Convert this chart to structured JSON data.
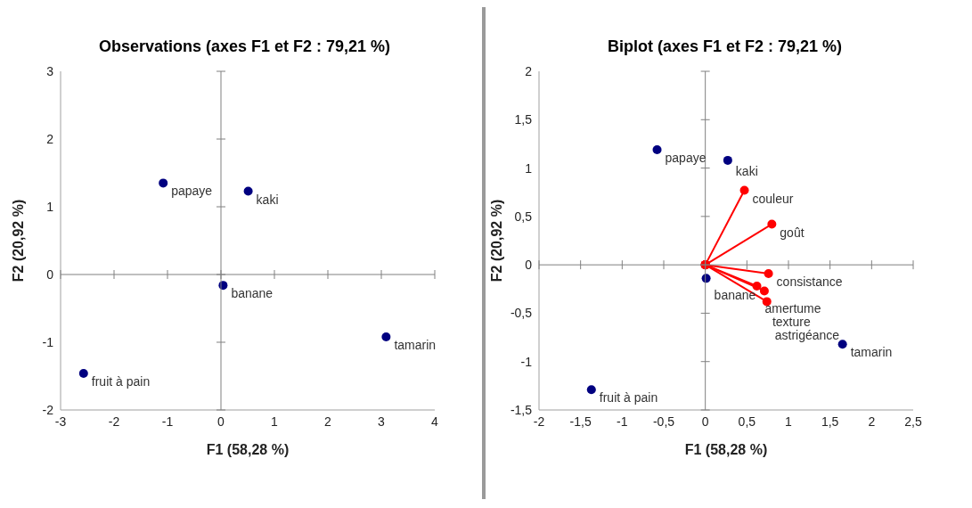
{
  "chart_data": [
    {
      "type": "scatter",
      "title": "Observations (axes F1 et F2 : 79,21 %)",
      "xlabel": "F1 (58,28 %)",
      "ylabel": "F2 (20,92 %)",
      "xlim": [
        -3,
        4
      ],
      "xticks": [
        -3,
        -2,
        -1,
        0,
        1,
        2,
        3,
        4
      ],
      "ylim": [
        -2,
        3
      ],
      "yticks": [
        -2,
        -1,
        0,
        1,
        2,
        3
      ],
      "marker": "circle",
      "series": [
        {
          "color": "#000080",
          "x": [
            -1.08,
            0.51,
            0.04,
            3.09,
            -2.57
          ],
          "values": [
            1.35,
            1.23,
            -0.16,
            -0.92,
            -1.46
          ]
        }
      ],
      "annotations": [
        {
          "text": "papaye",
          "x": -1.08,
          "y": 1.35
        },
        {
          "text": "kaki",
          "x": 0.51,
          "y": 1.23
        },
        {
          "text": "banane",
          "x": 0.04,
          "y": -0.16
        },
        {
          "text": "tamarin",
          "x": 3.09,
          "y": -0.92
        },
        {
          "text": "fruit à pain",
          "x": -2.57,
          "y": -1.46
        }
      ]
    },
    {
      "type": "scatter",
      "title": "Biplot (axes F1 et F2 : 79,21 %)",
      "xlabel": "F1 (58,28 %)",
      "ylabel": "F2 (20,92 %)",
      "xlim": [
        -2,
        2.5
      ],
      "xticks": [
        -2,
        {
          "value": -1.5,
          "label": "-1,5"
        },
        -1,
        {
          "value": -0.5,
          "label": "-0,5"
        },
        0,
        {
          "value": 0.5,
          "label": "0,5"
        },
        1,
        {
          "value": 1.5,
          "label": "1,5"
        },
        2,
        {
          "value": 2.5,
          "label": "2,5"
        }
      ],
      "ylim": [
        -1.5,
        2
      ],
      "yticks": [
        {
          "value": -1.5,
          "label": "-1,5"
        },
        -1,
        {
          "value": -0.5,
          "label": "-0,5"
        },
        0,
        {
          "value": 0.5,
          "label": "0,5"
        },
        1,
        {
          "value": 1.5,
          "label": "1,5"
        },
        2
      ],
      "marker": "circle",
      "series": [
        {
          "color": "#000080",
          "x": [
            -0.58,
            0.27,
            0.01,
            1.65,
            -1.37
          ],
          "values": [
            1.19,
            1.08,
            -0.14,
            -0.82,
            -1.29
          ]
        },
        {
          "type": "line",
          "color": "#ff0000",
          "x": [
            0,
            0.47
          ],
          "values": [
            0,
            0.77
          ]
        },
        {
          "type": "line",
          "color": "#ff0000",
          "x": [
            0,
            0.8
          ],
          "values": [
            0,
            0.42
          ]
        },
        {
          "type": "line",
          "color": "#ff0000",
          "x": [
            0,
            0.76
          ],
          "values": [
            0,
            -0.09
          ]
        },
        {
          "type": "line",
          "color": "#ff0000",
          "x": [
            0,
            0.62
          ],
          "values": [
            0,
            -0.22
          ]
        },
        {
          "type": "line",
          "color": "#ff0000",
          "x": [
            0,
            0.71
          ],
          "values": [
            0,
            -0.27
          ]
        },
        {
          "type": "line",
          "color": "#ff0000",
          "x": [
            0,
            0.74
          ],
          "values": [
            0,
            -0.38
          ]
        }
      ],
      "annotations": [
        {
          "text": "papaye",
          "x": -0.58,
          "y": 1.19
        },
        {
          "text": "kaki",
          "x": 0.27,
          "y": 1.08
        },
        {
          "text": "couleur",
          "x": 0.47,
          "y": 0.77
        },
        {
          "text": "goût",
          "x": 0.8,
          "y": 0.42
        },
        {
          "text": "banane",
          "x": 0.01,
          "y": -0.14
        },
        {
          "text": "consistance",
          "x": 0.76,
          "y": -0.09
        },
        {
          "text": "amertume",
          "x": 0.62,
          "y": -0.22
        },
        {
          "text": "texture",
          "x": 0.71,
          "y": -0.27
        },
        {
          "text": "astrigéance",
          "x": 0.74,
          "y": -0.38
        },
        {
          "text": "tamarin",
          "x": 1.65,
          "y": -0.82
        },
        {
          "text": "fruit à pain",
          "x": -1.37,
          "y": -1.29
        }
      ]
    }
  ]
}
